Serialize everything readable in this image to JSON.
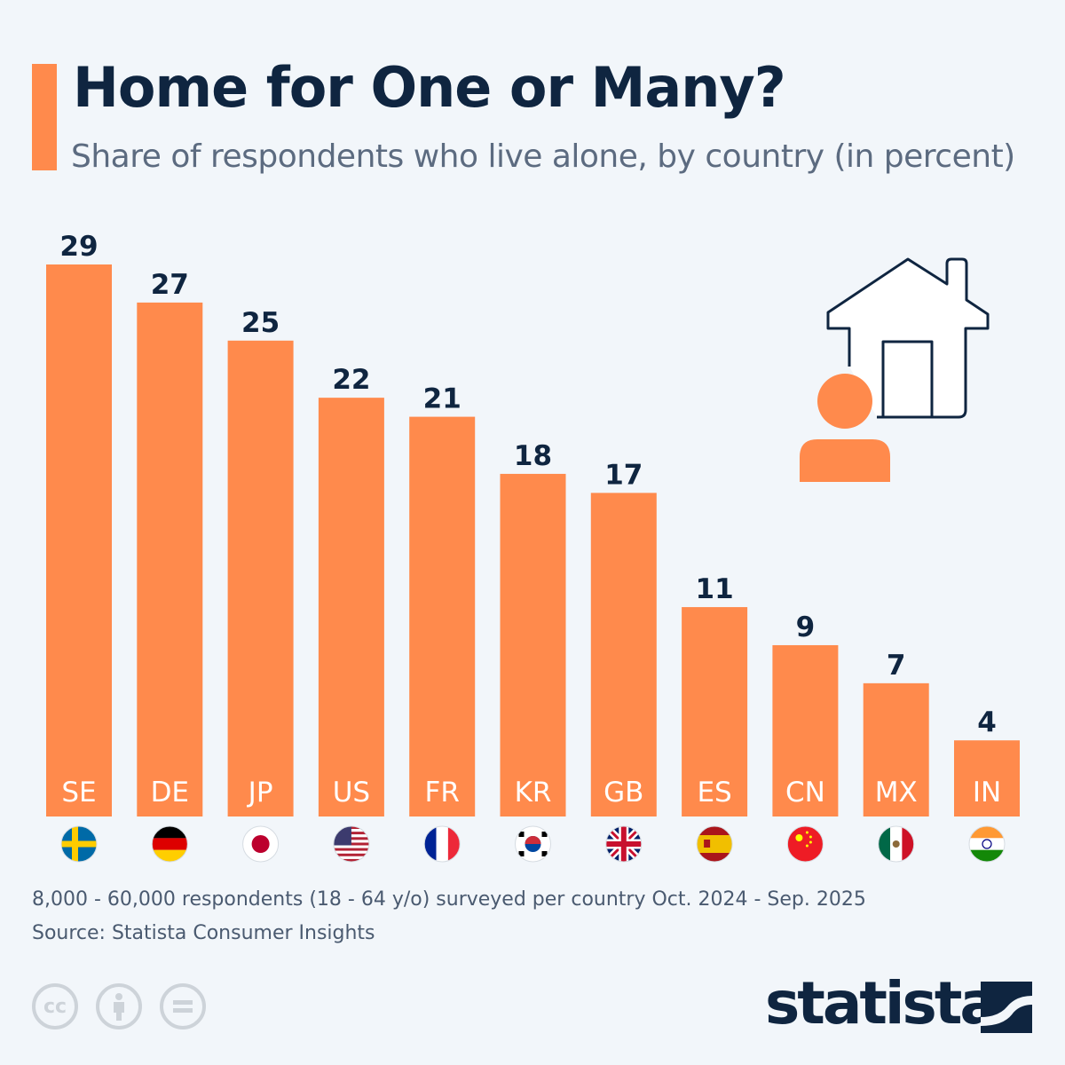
{
  "header": {
    "title": "Home for One or Many?",
    "subtitle": "Share of respondents who live alone, by country (in percent)"
  },
  "colors": {
    "bar": "#FF8A4C",
    "text": "#0F2540",
    "background": "#F2F6FA"
  },
  "chart_data": {
    "type": "bar",
    "categories": [
      "SE",
      "DE",
      "JP",
      "US",
      "FR",
      "KR",
      "GB",
      "ES",
      "CN",
      "MX",
      "IN"
    ],
    "values": [
      29,
      27,
      25,
      22,
      21,
      18,
      17,
      11,
      9,
      7,
      4
    ],
    "flags": [
      "sweden-flag",
      "germany-flag",
      "japan-flag",
      "usa-flag",
      "france-flag",
      "south-korea-flag",
      "uk-flag",
      "spain-flag",
      "china-flag",
      "mexico-flag",
      "india-flag"
    ],
    "ylim": [
      0,
      29
    ],
    "grid": false,
    "data_labels": true
  },
  "illustration": [
    "house-icon",
    "person-icon"
  ],
  "footer": {
    "note": "8,000 - 60,000 respondents (18 - 64 y/o) surveyed per country Oct. 2024 - Sep. 2025",
    "source": "Source: Statista Consumer Insights",
    "license_icons": [
      "cc-icon",
      "attribution-icon",
      "no-derivatives-icon"
    ],
    "logo": "statista"
  }
}
